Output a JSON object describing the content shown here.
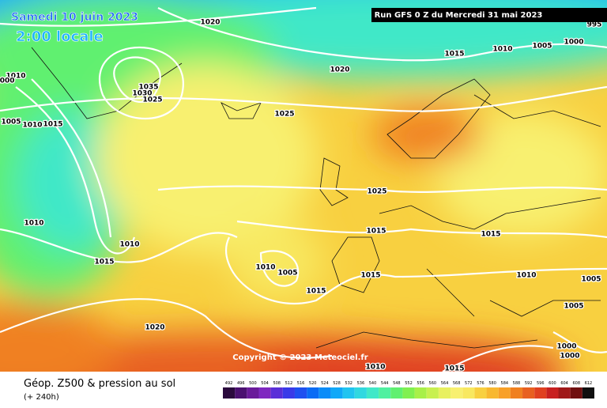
{
  "header": {
    "date": "Samedi 10 juin 2023",
    "time": "2:00 locale",
    "run": "Run GFS 0 Z du Mercredi 31 mai 2023"
  },
  "copyright": "Copyright © 2023 Meteociel.fr",
  "footer": {
    "title": "Géop. Z500 & pression au sol",
    "lead": "(+ 240h)"
  },
  "colorbar": {
    "labels": [
      492,
      496,
      500,
      504,
      508,
      512,
      516,
      520,
      524,
      528,
      532,
      536,
      540,
      544,
      548,
      552,
      556,
      560,
      564,
      568,
      572,
      576,
      580,
      584,
      588,
      592,
      596,
      600,
      604,
      608,
      612
    ],
    "colors": [
      "#2b0a3d",
      "#4b1070",
      "#6a1a9a",
      "#7f28c0",
      "#5a2fd8",
      "#3a3ae8",
      "#1f50f0",
      "#0a6cf5",
      "#0a8cf8",
      "#10a8f8",
      "#20c4f0",
      "#30d8e0",
      "#40e8c8",
      "#50f0a0",
      "#60f070",
      "#80f050",
      "#a8f048",
      "#c8f050",
      "#e8f060",
      "#f8f070",
      "#f8e860",
      "#f8d040",
      "#f8b830",
      "#f8a028",
      "#f08020",
      "#e86020",
      "#e04020",
      "#c82020",
      "#a01818",
      "#701010",
      "#101010"
    ]
  },
  "isobar_labels": [
    "1010",
    "1020",
    "1015",
    "1010",
    "1005",
    "1000",
    "995",
    "1020",
    "1035",
    "1030",
    "1025",
    "1025",
    "1005",
    "1010",
    "1015",
    "1000",
    "1025",
    "1010",
    "1015",
    "1015",
    "1010",
    "1015",
    "1010",
    "1005",
    "1015",
    "1010",
    "1005",
    "1015",
    "1005",
    "1020",
    "1000",
    "1000",
    "1010",
    "1015"
  ]
}
